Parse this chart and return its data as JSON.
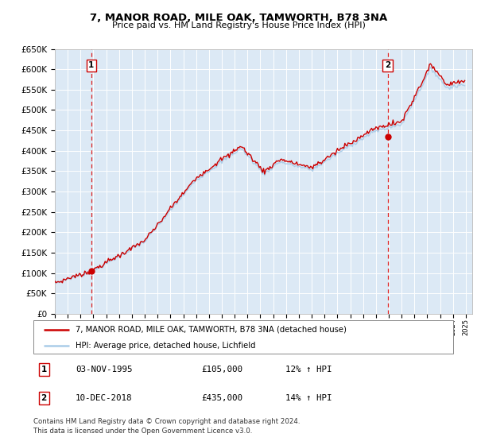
{
  "title": "7, MANOR ROAD, MILE OAK, TAMWORTH, B78 3NA",
  "subtitle": "Price paid vs. HM Land Registry's House Price Index (HPI)",
  "ylim": [
    0,
    650000
  ],
  "sale1_date": 1995.84,
  "sale1_price": 105000,
  "sale1_label": "1",
  "sale2_date": 2018.92,
  "sale2_price": 435000,
  "sale2_label": "2",
  "hpi_color": "#aacce8",
  "price_color": "#cc0000",
  "vline_color": "#dd2222",
  "bg_color": "#dce9f5",
  "grid_color": "#ffffff",
  "legend_label_price": "7, MANOR ROAD, MILE OAK, TAMWORTH, B78 3NA (detached house)",
  "legend_label_hpi": "HPI: Average price, detached house, Lichfield",
  "table_rows": [
    {
      "num": "1",
      "date": "03-NOV-1995",
      "price": "£105,000",
      "hpi": "12% ↑ HPI"
    },
    {
      "num": "2",
      "date": "10-DEC-2018",
      "price": "£435,000",
      "hpi": "14% ↑ HPI"
    }
  ],
  "footnote": "Contains HM Land Registry data © Crown copyright and database right 2024.\nThis data is licensed under the Open Government Licence v3.0."
}
